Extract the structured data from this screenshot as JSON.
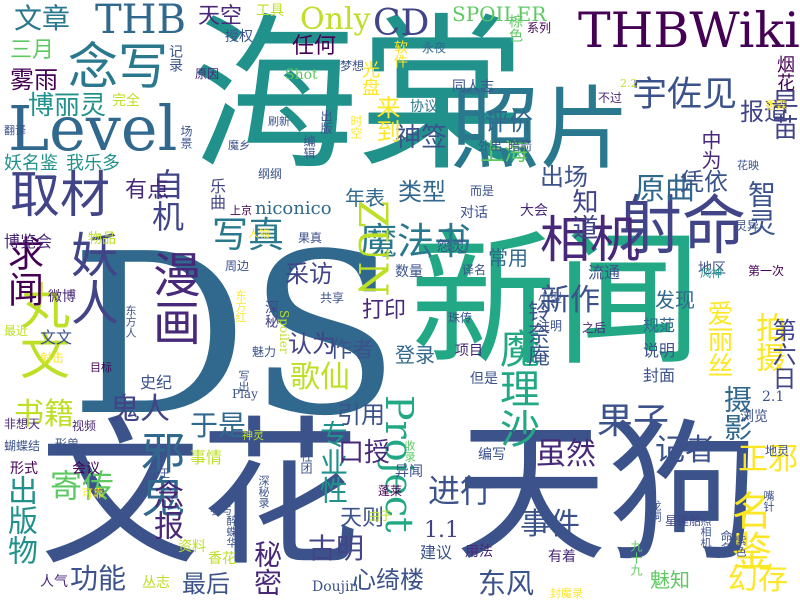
{
  "words": [
    {
      "text": "海棠",
      "color": "#21918c"
    },
    {
      "text": "DS",
      "color": "#31688e"
    },
    {
      "text": "新闻",
      "color": "#22a884"
    },
    {
      "text": "文花",
      "color": "#3b528b"
    },
    {
      "text": "天狗",
      "color": "#3b528b"
    },
    {
      "text": "照片",
      "color": "#2a788e"
    },
    {
      "text": "THBWiki",
      "color": "#440154"
    },
    {
      "text": "Level",
      "color": "#31688e"
    },
    {
      "text": "THB",
      "color": "#31688e"
    },
    {
      "text": "文章",
      "color": "#2a788e"
    },
    {
      "text": "念写",
      "color": "#2a788e"
    },
    {
      "text": "Only",
      "color": "#bddf26"
    },
    {
      "text": "CD",
      "color": "#414487"
    },
    {
      "text": "取材",
      "color": "#414487"
    },
    {
      "text": "射命",
      "color": "#414487"
    },
    {
      "text": "相机",
      "color": "#482878"
    },
    {
      "text": "宇佐见",
      "color": "#3b528b"
    },
    {
      "text": "魔法书",
      "color": "#2a788e"
    },
    {
      "text": "ZUN",
      "color": "#bddf26"
    },
    {
      "text": "妖人",
      "color": "#414487"
    },
    {
      "text": "漫画",
      "color": "#482878"
    },
    {
      "text": "丸文",
      "color": "#bddf26"
    },
    {
      "text": "邪鬼",
      "color": "#31688e"
    },
    {
      "text": "Project",
      "color": "#22a884"
    },
    {
      "text": "魔理沙",
      "color": "#22a884"
    },
    {
      "text": "名鉴",
      "color": "#fde725"
    },
    {
      "text": "果子",
      "color": "#3b528b"
    },
    {
      "text": "写真",
      "color": "#2a788e"
    },
    {
      "text": "寄传",
      "color": "#5ec962"
    },
    {
      "text": "出版物",
      "color": "#21918c"
    },
    {
      "text": "念报",
      "color": "#482878"
    },
    {
      "text": "功能",
      "color": "#3b528b"
    },
    {
      "text": "专业性",
      "color": "#21918c"
    },
    {
      "text": "事件",
      "color": "#3b528b"
    },
    {
      "text": "幻存",
      "color": "#fde725"
    },
    {
      "text": "秘密",
      "color": "#482878"
    },
    {
      "text": "东风",
      "color": "#3b528b"
    },
    {
      "text": "歌仙",
      "color": "#bddf26"
    },
    {
      "text": "鬼人",
      "color": "#414487"
    },
    {
      "text": "书籍",
      "color": "#bddf26"
    },
    {
      "text": "求闻",
      "color": "#440154"
    },
    {
      "text": "自机",
      "color": "#414487"
    },
    {
      "text": "原曲",
      "color": "#31688e"
    },
    {
      "text": "记者",
      "color": "#3b528b"
    },
    {
      "text": "进行",
      "color": "#3b528b"
    },
    {
      "text": "虽然",
      "color": "#482878"
    },
    {
      "text": "引用",
      "color": "#3b528b"
    },
    {
      "text": "新作",
      "color": "#3b528b"
    },
    {
      "text": "正邪",
      "color": "#fde725"
    },
    {
      "text": "古明",
      "color": "#414487"
    },
    {
      "text": "最后",
      "color": "#3b528b"
    },
    {
      "text": "于是",
      "color": "#31688e"
    },
    {
      "text": "口授",
      "color": "#482878"
    },
    {
      "text": "天则",
      "color": "#3b528b"
    },
    {
      "text": "心绮楼",
      "color": "#3b528b"
    },
    {
      "text": "拍摄",
      "color": "#fde725"
    },
    {
      "text": "第六日",
      "color": "#414487"
    },
    {
      "text": "摄影",
      "color": "#31688e"
    },
    {
      "text": "神签",
      "color": "#3b528b"
    },
    {
      "text": "评价",
      "color": "#31688e"
    },
    {
      "text": "上海",
      "color": "#5ec962"
    },
    {
      "text": "出场",
      "color": "#3b528b"
    },
    {
      "text": "凭依",
      "color": "#3b528b"
    },
    {
      "text": "类型",
      "color": "#31688e"
    },
    {
      "text": "常用",
      "color": "#31688e"
    },
    {
      "text": "采访",
      "color": "#414487"
    },
    {
      "text": "发现",
      "color": "#31688e"
    },
    {
      "text": "打印",
      "color": "#482878"
    },
    {
      "text": "作者",
      "color": "#3b528b"
    },
    {
      "text": "登录",
      "color": "#31688e"
    },
    {
      "text": "认为",
      "color": "#414487"
    },
    {
      "text": "有点",
      "color": "#482878"
    },
    {
      "text": "爱丽丝",
      "color": "#fde725"
    },
    {
      "text": "来到",
      "color": "#fde725"
    },
    {
      "text": "报道",
      "color": "#414487"
    },
    {
      "text": "任何",
      "color": "#440154"
    },
    {
      "text": "天空",
      "color": "#482878"
    },
    {
      "text": "SPOILER",
      "color": "#5ec962"
    },
    {
      "text": "三月",
      "color": "#5ec962"
    },
    {
      "text": "雾雨",
      "color": "#440154"
    },
    {
      "text": "博丽灵",
      "color": "#21918c"
    },
    {
      "text": "妖名鉴",
      "color": "#21918c"
    },
    {
      "text": "我乐多",
      "color": "#21918c"
    },
    {
      "text": "年表",
      "color": "#31688e"
    },
    {
      "text": "知道",
      "color": "#414487"
    },
    {
      "text": "智灵",
      "color": "#3b528b"
    },
    {
      "text": "早苗",
      "color": "#414487"
    },
    {
      "text": "烟花",
      "color": "#440154"
    },
    {
      "text": "光盘",
      "color": "#fde725"
    },
    {
      "text": "中为",
      "color": "#482878"
    },
    {
      "text": "niconico",
      "color": "#31688e"
    },
    {
      "text": "铃奈庵",
      "color": "#3b528b"
    },
    {
      "text": "工具",
      "color": "#bddf26"
    },
    {
      "text": "软件",
      "color": "#fde725"
    },
    {
      "text": "棕色",
      "color": "#5ec962"
    },
    {
      "text": "授权",
      "color": "#3b528b"
    },
    {
      "text": "完全",
      "color": "#bddf26"
    },
    {
      "text": "乐曲",
      "color": "#414487"
    },
    {
      "text": "博览会",
      "color": "#482878"
    },
    {
      "text": "物品",
      "color": "#bddf26"
    },
    {
      "text": "微博",
      "color": "#482878"
    },
    {
      "text": "同人志",
      "color": "#3b528b"
    },
    {
      "text": "协议",
      "color": "#2a788e"
    },
    {
      "text": "Shot",
      "color": "#5ec962"
    },
    {
      "text": "梦想",
      "color": "#3b528b"
    },
    {
      "text": "记录",
      "color": "#3b528b"
    },
    {
      "text": "原因",
      "color": "#482878"
    },
    {
      "text": "永夜",
      "color": "#31688e"
    },
    {
      "text": "不过",
      "color": "#482878"
    },
    {
      "text": "地区",
      "color": "#3b528b"
    },
    {
      "text": "流通",
      "color": "#3b528b"
    },
    {
      "text": "对话",
      "color": "#3b528b"
    },
    {
      "text": "大会",
      "color": "#482878"
    },
    {
      "text": "怨灵",
      "color": "#3b528b"
    },
    {
      "text": "数量",
      "color": "#3b528b"
    },
    {
      "text": "规范",
      "color": "#31688e"
    },
    {
      "text": "说明",
      "color": "#3b528b"
    },
    {
      "text": "封面",
      "color": "#3b528b"
    },
    {
      "text": "浏览",
      "color": "#3b528b"
    },
    {
      "text": "项目",
      "color": "#482878"
    },
    {
      "text": "但是",
      "color": "#3b528b"
    },
    {
      "text": "文文",
      "color": "#3b528b"
    },
    {
      "text": "视频",
      "color": "#482878"
    },
    {
      "text": "蝴蝶结",
      "color": "#3b528b"
    },
    {
      "text": "史纪",
      "color": "#3b528b"
    },
    {
      "text": "Play",
      "color": "#3b528b"
    },
    {
      "text": "魅力",
      "color": "#3b528b"
    },
    {
      "text": "形式",
      "color": "#440154"
    },
    {
      "text": "会议",
      "color": "#440154"
    },
    {
      "text": "事情",
      "color": "#bddf26"
    },
    {
      "text": "资料",
      "color": "#bddf26"
    },
    {
      "text": "香花",
      "color": "#bddf26"
    },
    {
      "text": "人气",
      "color": "#482878"
    },
    {
      "text": "丛志",
      "color": "#bddf26"
    },
    {
      "text": "Doujin",
      "color": "#3b528b"
    },
    {
      "text": "魅知",
      "color": "#5ec962"
    },
    {
      "text": "建议",
      "color": "#3b528b"
    },
    {
      "text": "用法",
      "color": "#482878"
    },
    {
      "text": "有着",
      "color": "#482878"
    },
    {
      "text": "编写",
      "color": "#3b528b"
    },
    {
      "text": "异闻",
      "color": "#3b528b"
    },
    {
      "text": "蓬莱",
      "color": "#440154"
    },
    {
      "text": "由于",
      "color": "#bddf26"
    },
    {
      "text": "2.1",
      "color": "#3b528b"
    },
    {
      "text": "1.1",
      "color": "#414487"
    },
    {
      "text": "星莲船",
      "color": "#414487"
    },
    {
      "text": "深秘",
      "color": "#414487"
    },
    {
      "text": "共享",
      "color": "#3b528b"
    },
    {
      "text": "周边",
      "color": "#3b528b"
    },
    {
      "text": "小型",
      "color": "#3b528b"
    },
    {
      "text": "珠传",
      "color": "#3b528b"
    },
    {
      "text": "注明",
      "color": "#3b528b"
    },
    {
      "text": "之后",
      "color": "#482878"
    },
    {
      "text": "译名",
      "color": "#3b528b"
    },
    {
      "text": "果真",
      "color": "#3b528b"
    },
    {
      "text": "人物",
      "color": "#fde725"
    },
    {
      "text": "上京",
      "color": "#440154"
    },
    {
      "text": "而是",
      "color": "#3b528b"
    },
    {
      "text": "灵异",
      "color": "#3b528b"
    },
    {
      "text": "花映",
      "color": "#3b528b"
    },
    {
      "text": "风神",
      "color": "#21918c"
    },
    {
      "text": "第一次",
      "color": "#440154"
    },
    {
      "text": "地灵",
      "color": "#3b528b"
    },
    {
      "text": "系列",
      "color": "#440154"
    },
    {
      "text": "2.2",
      "color": "#bddf26"
    },
    {
      "text": "香霖",
      "color": "#fde725"
    },
    {
      "text": "外出",
      "color": "#3b528b"
    },
    {
      "text": "暗箭",
      "color": "#3b528b"
    },
    {
      "text": "时空",
      "color": "#fde725"
    },
    {
      "text": "编辑",
      "color": "#3b528b"
    },
    {
      "text": "出版",
      "color": "#3b528b"
    },
    {
      "text": "翻译",
      "color": "#3b528b"
    },
    {
      "text": "场景",
      "color": "#3b528b"
    },
    {
      "text": "刷新",
      "color": "#3b528b"
    },
    {
      "text": "魔乡",
      "color": "#3b528b"
    },
    {
      "text": "纲纲",
      "color": "#3b528b"
    },
    {
      "text": "射击",
      "color": "#fde725"
    },
    {
      "text": "最近",
      "color": "#bddf26"
    },
    {
      "text": "目标",
      "color": "#440154"
    },
    {
      "text": "东方人",
      "color": "#3b528b"
    },
    {
      "text": "东方红",
      "color": "#fde725"
    },
    {
      "text": "非想天",
      "color": "#482878"
    },
    {
      "text": "形兽",
      "color": "#3b528b"
    },
    {
      "text": "兽王",
      "color": "#3b528b"
    },
    {
      "text": "神灵",
      "color": "#bddf26"
    },
    {
      "text": "社团",
      "color": "#3b528b"
    },
    {
      "text": "深秘录",
      "color": "#3b528b"
    },
    {
      "text": "可靠",
      "color": "#fde725"
    },
    {
      "text": "醉蝶华",
      "color": "#3b528b"
    },
    {
      "text": "参与",
      "color": "#3b528b"
    },
    {
      "text": "写出",
      "color": "#3b528b"
    },
    {
      "text": "Spoiler",
      "color": "#bddf26"
    },
    {
      "text": "收录",
      "color": "#5ec962"
    },
    {
      "text": "九十九",
      "color": "#5ec962"
    },
    {
      "text": "命名",
      "color": "#3b528b"
    },
    {
      "text": "紫色",
      "color": "#3b528b"
    },
    {
      "text": "嘴针",
      "color": "#3b528b"
    },
    {
      "text": "龙洞",
      "color": "#3b528b"
    },
    {
      "text": "照相机",
      "color": "#3b528b"
    },
    {
      "text": "封魔录",
      "color": "#fde725"
    }
  ]
}
